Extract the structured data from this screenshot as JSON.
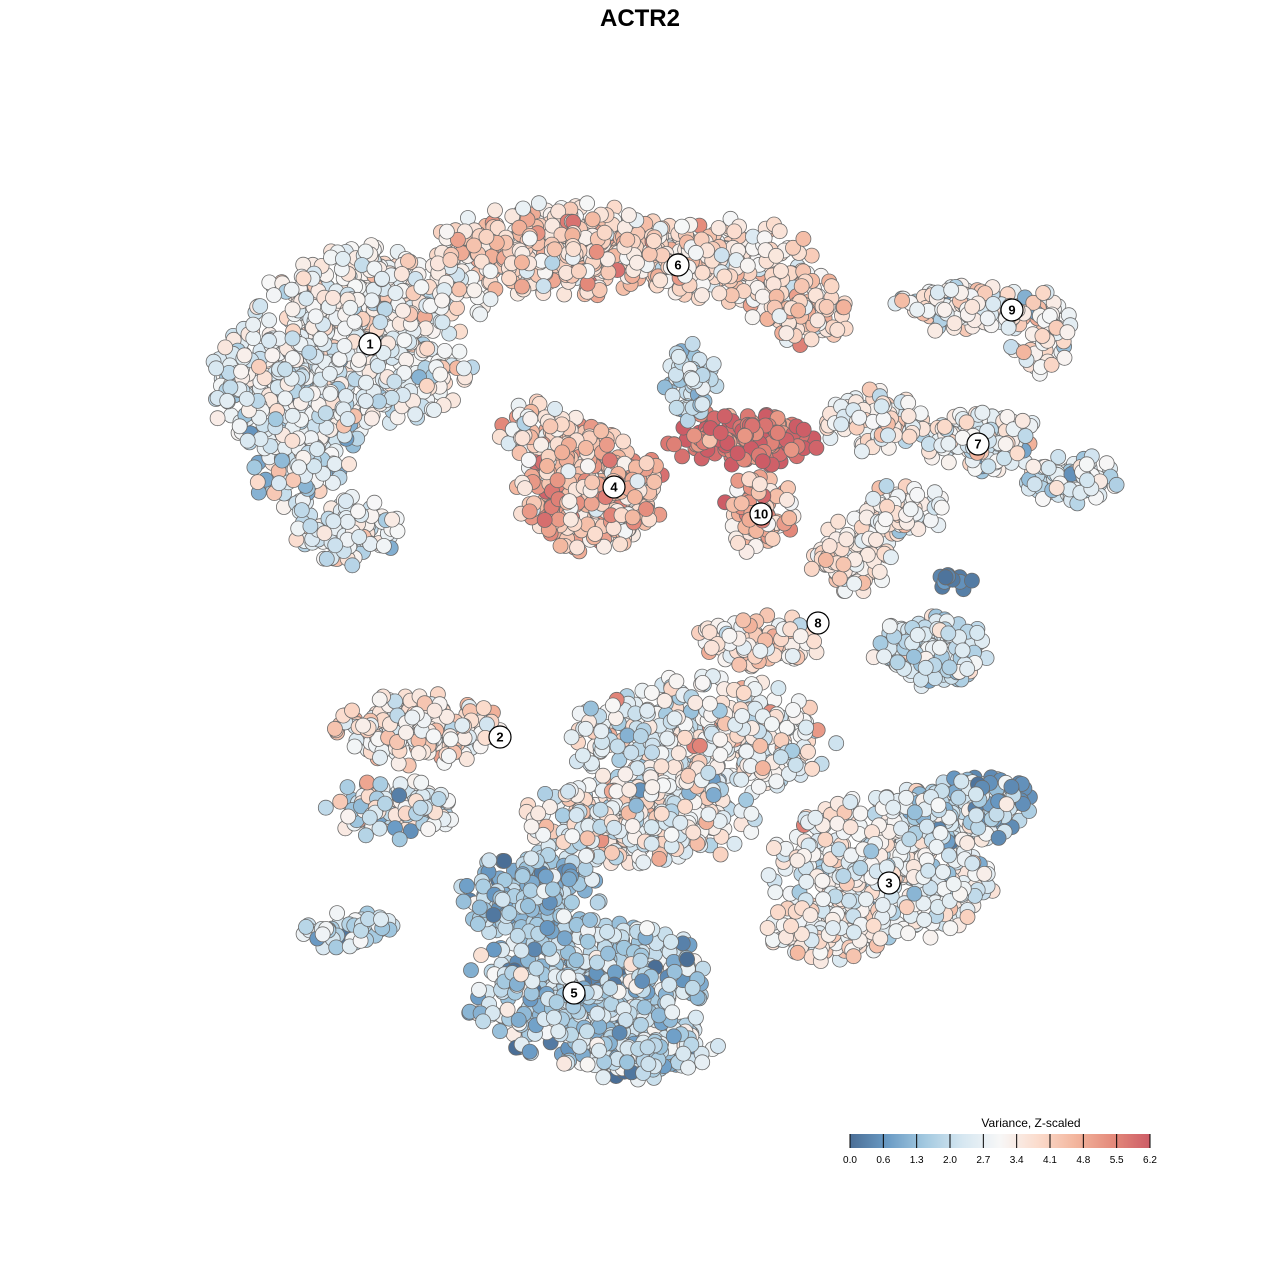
{
  "chart_data": {
    "type": "scatter",
    "title": "ACTR2",
    "xlabel": "",
    "ylabel": "",
    "grid": false,
    "legend": {
      "title": "Variance, Z-scaled",
      "placement": "bottom-right",
      "range": [
        0.0,
        6.2
      ],
      "tick_labels": [
        "0.0",
        "0.6",
        "1.3",
        "2.0",
        "2.7",
        "3.4",
        "4.1",
        "4.8",
        "5.5",
        "6.2"
      ],
      "colors": [
        "#4a6e96",
        "#6a9bc5",
        "#a3c9e0",
        "#d6e7f1",
        "#f7f7f7",
        "#fbdccd",
        "#f3b69e",
        "#e48a7b",
        "#cd5c66"
      ]
    },
    "clusters": [
      {
        "label": "1",
        "center": [
          370,
          344
        ],
        "mean_value": 2.9
      },
      {
        "label": "2",
        "center": [
          500,
          737
        ],
        "mean_value": 3.2
      },
      {
        "label": "3",
        "center": [
          889,
          883
        ],
        "mean_value": 2.9
      },
      {
        "label": "4",
        "center": [
          614,
          487
        ],
        "mean_value": 4.4
      },
      {
        "label": "5",
        "center": [
          574,
          993
        ],
        "mean_value": 2.4
      },
      {
        "label": "6",
        "center": [
          678,
          265
        ],
        "mean_value": 3.6
      },
      {
        "label": "7",
        "center": [
          978,
          444
        ],
        "mean_value": 3.0
      },
      {
        "label": "8",
        "center": [
          818,
          623
        ],
        "mean_value": 3.0
      },
      {
        "label": "9",
        "center": [
          1012,
          310
        ],
        "mean_value": 3.3
      },
      {
        "label": "10",
        "center": [
          761,
          514
        ],
        "mean_value": 4.6
      }
    ]
  }
}
